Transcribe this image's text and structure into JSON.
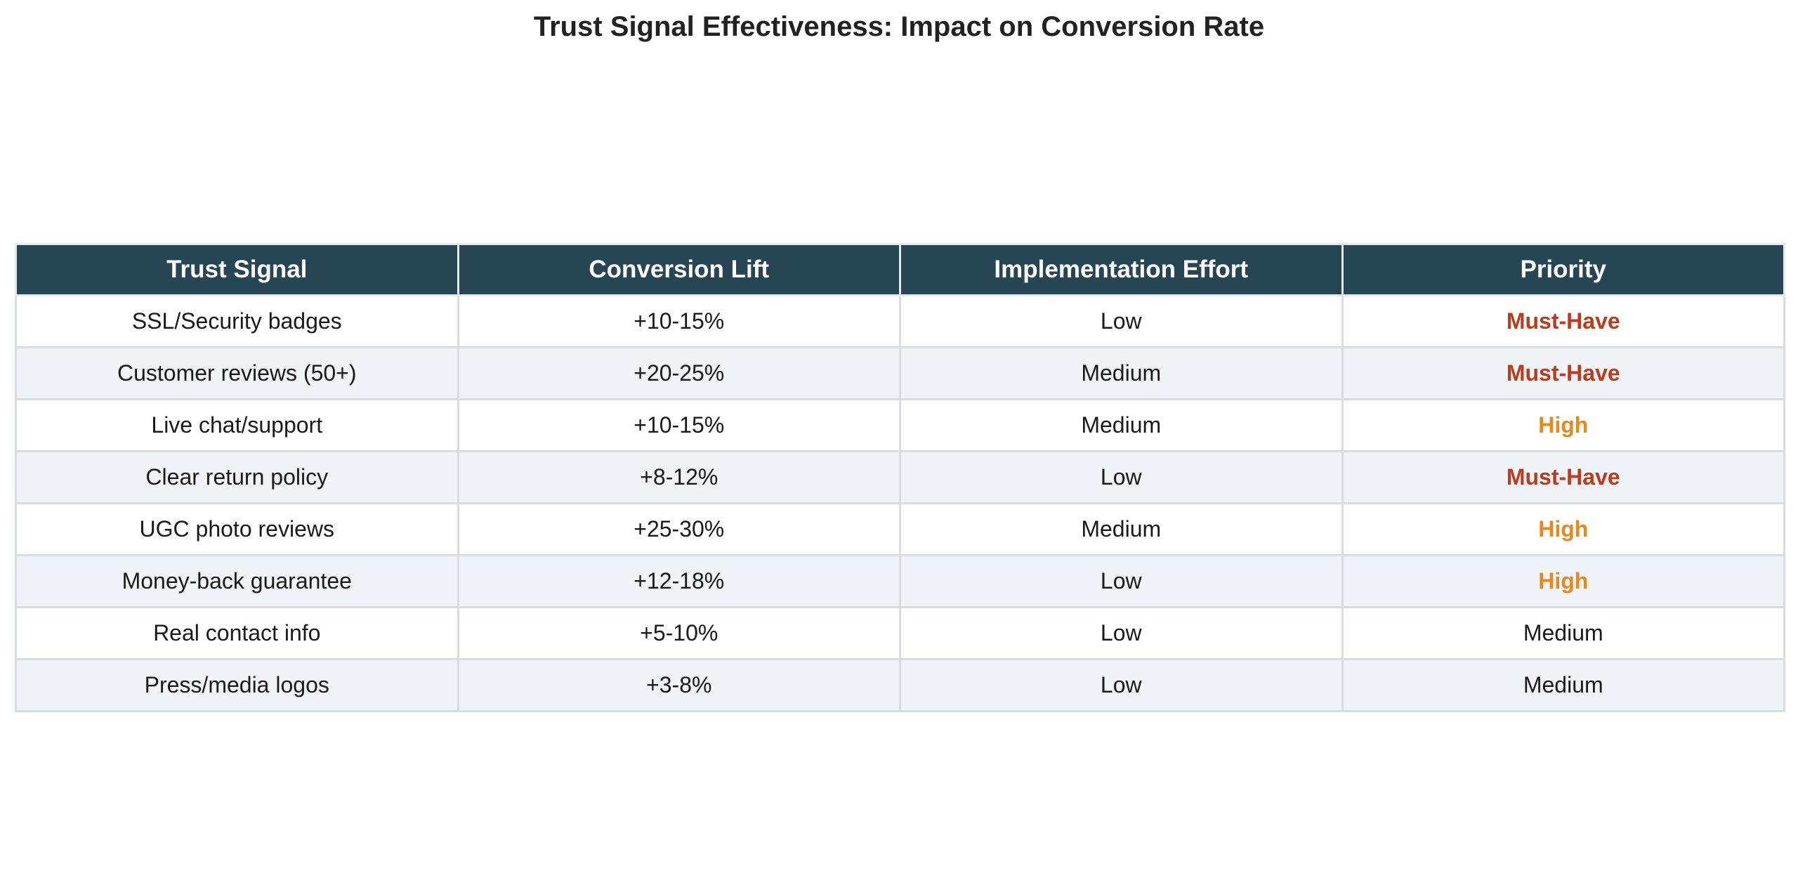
{
  "chart_data": {
    "type": "table",
    "title": "Trust Signal Effectiveness: Impact on Conversion Rate",
    "columns": [
      "Trust Signal",
      "Conversion Lift",
      "Implementation Effort",
      "Priority"
    ],
    "rows": [
      {
        "signal": "SSL/Security badges",
        "lift": "+10-15%",
        "effort": "Low",
        "priority": "Must-Have"
      },
      {
        "signal": "Customer reviews (50+)",
        "lift": "+20-25%",
        "effort": "Medium",
        "priority": "Must-Have"
      },
      {
        "signal": "Live chat/support",
        "lift": "+10-15%",
        "effort": "Medium",
        "priority": "High"
      },
      {
        "signal": "Clear return policy",
        "lift": "+8-12%",
        "effort": "Low",
        "priority": "Must-Have"
      },
      {
        "signal": "UGC photo reviews",
        "lift": "+25-30%",
        "effort": "Medium",
        "priority": "High"
      },
      {
        "signal": "Money-back guarantee",
        "lift": "+12-18%",
        "effort": "Low",
        "priority": "High"
      },
      {
        "signal": "Real contact info",
        "lift": "+5-10%",
        "effort": "Low",
        "priority": "Medium"
      },
      {
        "signal": "Press/media logos",
        "lift": "+3-8%",
        "effort": "Low",
        "priority": "Medium"
      }
    ],
    "colors": {
      "header_bg": "#264653",
      "header_text": "#ffffff",
      "row_alt_bg": "#f0f3f7",
      "must_have": "#c0391b",
      "high": "#e8891a",
      "medium": "#1a1a1a"
    }
  }
}
